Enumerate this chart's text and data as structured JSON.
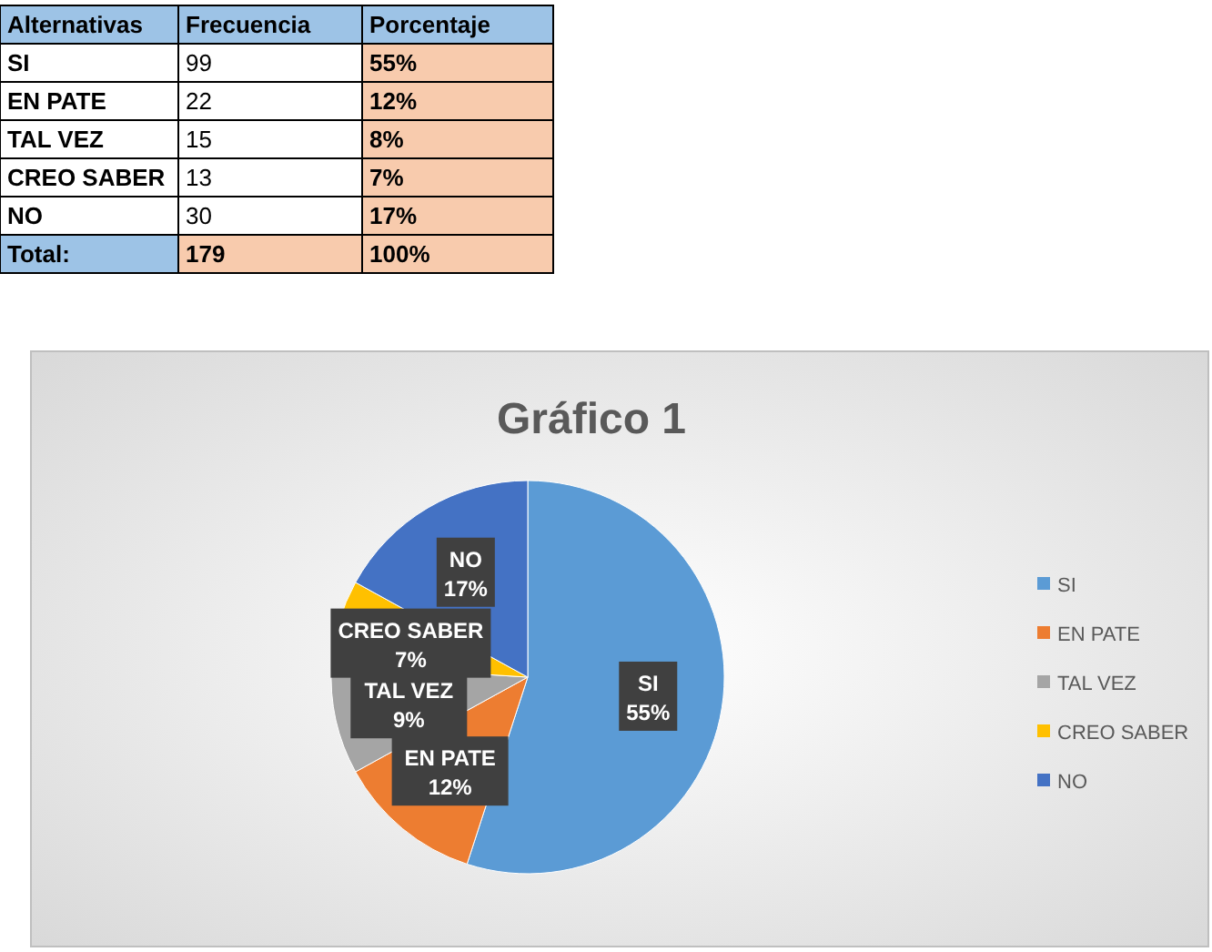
{
  "chart_data": {
    "type": "pie",
    "title": "Gráfico 1",
    "categories": [
      "SI",
      "EN PATE",
      "TAL VEZ",
      "CREO SABER",
      "NO"
    ],
    "values": [
      55,
      12,
      9,
      7,
      17
    ],
    "colors": [
      "#5b9bd5",
      "#ed7d31",
      "#a5a5a5",
      "#ffc000",
      "#4472c4"
    ],
    "value_labels": [
      "55%",
      "12%",
      "9%",
      "7%",
      "17%"
    ],
    "annotations": [
      "Alternativas",
      "Frecuencia",
      "Porcentaje",
      "99",
      "55%",
      "22",
      "12%",
      "15",
      "8%",
      "13",
      "7%",
      "30",
      "17%",
      "Total:",
      "179",
      "100%"
    ],
    "legend": "right"
  }
}
